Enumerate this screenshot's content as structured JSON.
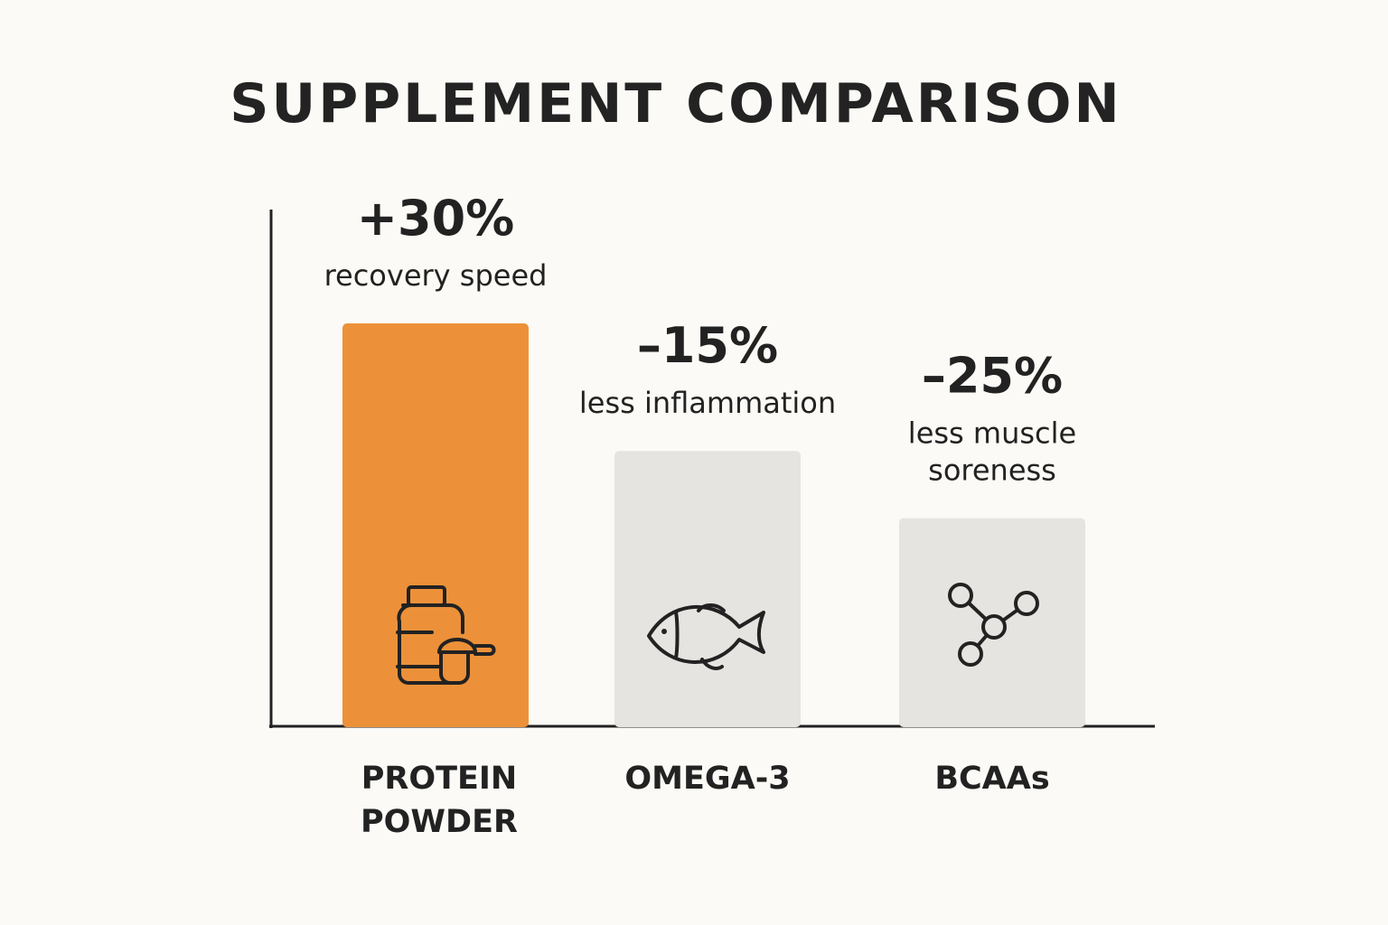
{
  "colors": {
    "background": "#fbfaf6",
    "highlight": "#ec9139",
    "neutral": "#e6e4e1",
    "ink": "#222222"
  },
  "chart_data": {
    "type": "bar",
    "title": "SUPPLEMENT COMPARISON",
    "categories": [
      "PROTEIN POWDER",
      "OMEGA-3",
      "BCAAs"
    ],
    "values": [
      30,
      -15,
      -25
    ],
    "value_labels": [
      "+30%",
      "–15%",
      "–25%"
    ],
    "descriptions": [
      "recovery speed",
      "less inflammation",
      "less muscle soreness"
    ],
    "bar_heights": [
      30,
      20.5,
      15.5
    ],
    "icons": [
      "protein-jar-icon",
      "fish-icon",
      "molecule-icon"
    ],
    "bar_colors": [
      "#ec9139",
      "#e6e4e1",
      "#e6e4e1"
    ],
    "ylim": [
      0,
      37
    ],
    "grid": false,
    "legend": "none"
  }
}
